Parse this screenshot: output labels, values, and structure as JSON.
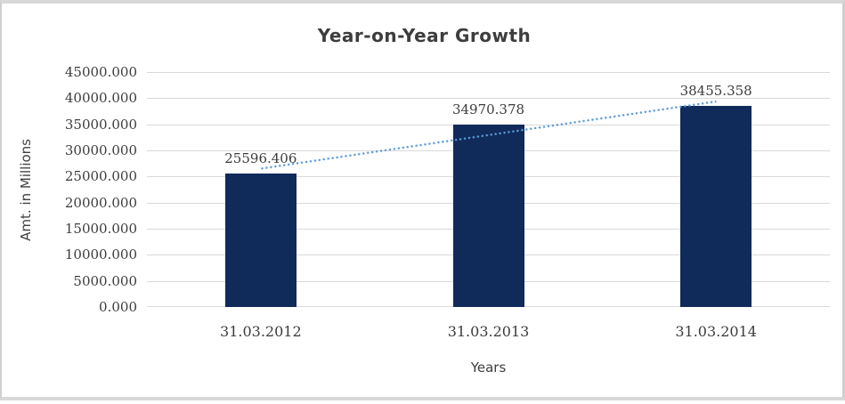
{
  "chart_data": {
    "type": "bar",
    "title": "Year-on-Year Growth",
    "xlabel": "Years",
    "ylabel": "Amt. in Millions",
    "categories": [
      "31.03.2012",
      "31.03.2013",
      "31.03.2014"
    ],
    "values": [
      25596.406,
      34970.378,
      38455.358
    ],
    "data_labels": [
      "25596.406",
      "34970.378",
      "38455.358"
    ],
    "y_ticks": [
      "0.000",
      "5000.000",
      "10000.000",
      "15000.000",
      "20000.000",
      "25000.000",
      "30000.000",
      "35000.000",
      "40000.000",
      "45000.000"
    ],
    "ylim": [
      0,
      45000
    ],
    "tick_step": 5000,
    "grid": true,
    "legend": "none",
    "trendline": {
      "type": "linear",
      "style": "dotted",
      "color": "#5b9bd5"
    },
    "colors": {
      "bar": "#102a5a",
      "gridline": "#d9d9d9",
      "title_text": "#3d3d3d",
      "axis_text": "#404040",
      "number_text": "#3c3c3c",
      "frame_border": "#d3d3d3",
      "background": "#ffffff"
    }
  }
}
